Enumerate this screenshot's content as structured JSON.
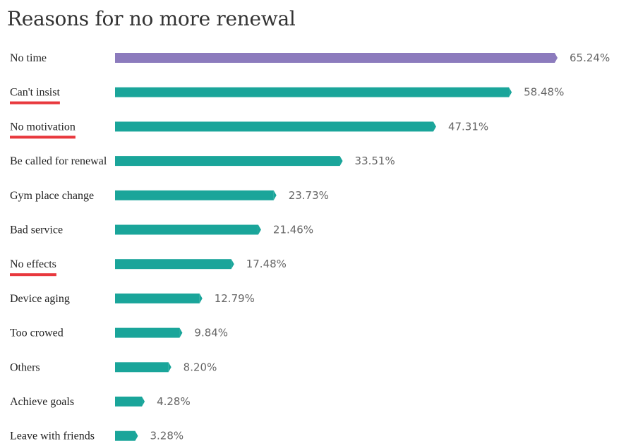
{
  "chart_data": {
    "type": "bar",
    "orientation": "horizontal",
    "title": "Reasons for no more renewal",
    "categories": [
      "No time",
      "Can't insist",
      "No motivation",
      "Be called for renewal",
      "Gym place change",
      "Bad service",
      "No effects",
      "Device aging",
      "Too crowed",
      "Others",
      "Achieve goals",
      "Leave with friends"
    ],
    "values": [
      65.24,
      58.48,
      47.31,
      33.51,
      23.73,
      21.46,
      17.48,
      12.79,
      9.84,
      8.2,
      4.28,
      3.28
    ],
    "value_labels": [
      "65.24%",
      "58.48%",
      "47.31%",
      "33.51%",
      "23.73%",
      "21.46%",
      "17.48%",
      "12.79%",
      "9.84%",
      "8.20%",
      "4.28%",
      "3.28%"
    ],
    "highlight_colors": [
      "#8c7bbd",
      "#1aa59a",
      "#1aa59a",
      "#1aa59a",
      "#1aa59a",
      "#1aa59a",
      "#1aa59a",
      "#1aa59a",
      "#1aa59a",
      "#1aa59a",
      "#1aa59a",
      "#1aa59a"
    ],
    "underlined_categories": [
      "Can't insist",
      "No motivation",
      "No effects"
    ],
    "underline_color": "#e8383d",
    "xlim": [
      0,
      65.24
    ],
    "grid": false,
    "legend": "none"
  }
}
